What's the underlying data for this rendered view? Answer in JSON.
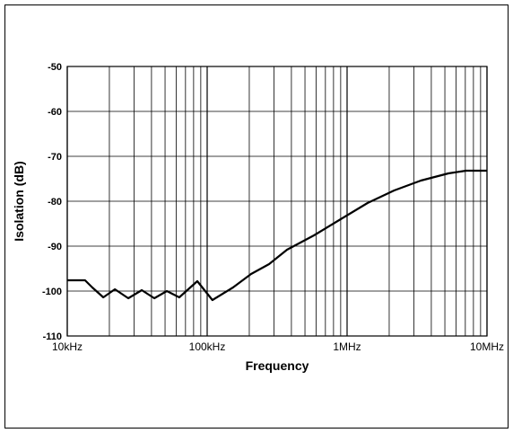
{
  "chart_data": {
    "type": "line",
    "xlabel": "Frequency",
    "ylabel": "Isolation (dB)",
    "xscale": "log",
    "xlim": [
      10000,
      10000000
    ],
    "xticks": [
      {
        "value": 10000,
        "label": "10kHz"
      },
      {
        "value": 100000,
        "label": "100kHz"
      },
      {
        "value": 1000000,
        "label": "1MHz"
      },
      {
        "value": 10000000,
        "label": "10MHz"
      }
    ],
    "ylim": [
      -110,
      -50
    ],
    "yticks": [
      -110,
      -100,
      -90,
      -80,
      -70,
      -60,
      -50
    ],
    "grid": true,
    "series": [
      {
        "color": "#000000",
        "x": [
          10000,
          13400,
          15100,
          18100,
          21900,
          27300,
          34100,
          41900,
          51500,
          63200,
          85000,
          109000,
          153000,
          206000,
          277000,
          372000,
          580000,
          900000,
          1400000,
          2170000,
          3370000,
          5300000,
          7100000,
          10000000
        ],
        "values": [
          -97.6,
          -97.6,
          -99.2,
          -101.4,
          -99.6,
          -101.6,
          -99.8,
          -101.6,
          -100,
          -101.4,
          -97.8,
          -102,
          -99.2,
          -96.2,
          -94,
          -90.8,
          -87.6,
          -84,
          -80.4,
          -77.6,
          -75.4,
          -73.8,
          -73.2,
          -73.2
        ]
      }
    ]
  }
}
